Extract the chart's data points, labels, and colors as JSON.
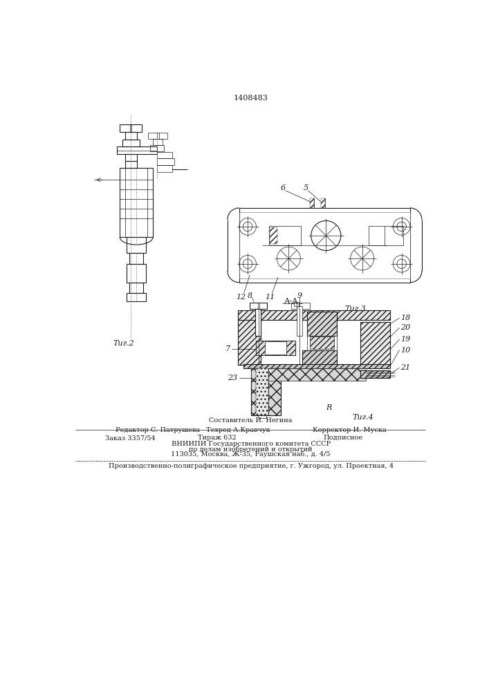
{
  "patent_number": "1408483",
  "fig2_label": "Τиг.2",
  "fig3_label": "Τиг.3",
  "fig4_label": "Τиг.4",
  "section_label": "А-А",
  "sestavitel": "Составитель И. Негина",
  "redaktor": "Редактор С. Патрушева",
  "tehred": "Техред А.Кравчук",
  "korrektor": "Корректор И. Муска",
  "zakaz": "Заказ 3357/54",
  "tirazh": "Тираж 632",
  "podpisnoe": "Подписное",
  "vniip1": "ВНИИПИ Государственного комитета СССР",
  "vniip2": "по делам изобретений и открытий",
  "vniip3": "113035, Москва, Ж-35, Раушская наб., д. 4/5",
  "predpr": "Производственно-полиграфическое предприятие, г. Ужгород, ул. Проектная, 4",
  "bg_color": "#ffffff",
  "line_color": "#1a1a1a"
}
